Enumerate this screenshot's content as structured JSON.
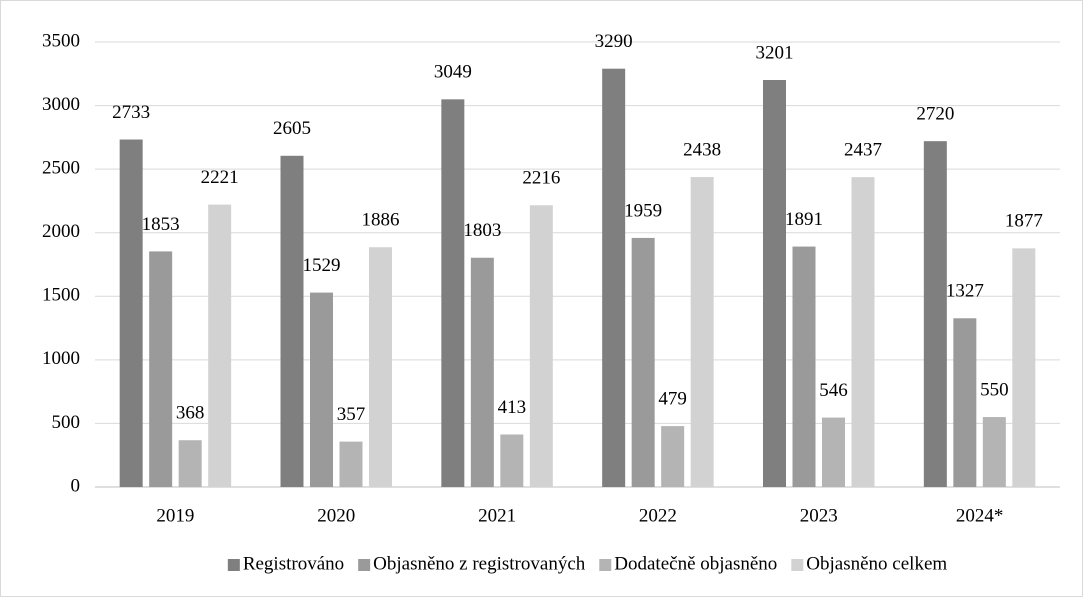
{
  "chart_data": {
    "type": "bar",
    "categories": [
      "2019",
      "2020",
      "2021",
      "2022",
      "2023",
      "2024*"
    ],
    "series": [
      {
        "name": "Registrováno",
        "color": "#7f7f7f",
        "values": [
          2733,
          2605,
          3049,
          3290,
          3201,
          2720
        ]
      },
      {
        "name": "Objasněno z registrovaných",
        "color": "#9a9a9a",
        "values": [
          1853,
          1529,
          1803,
          1959,
          1891,
          1327
        ]
      },
      {
        "name": "Dodatečně objasněno",
        "color": "#b4b4b4",
        "values": [
          368,
          357,
          413,
          479,
          546,
          550
        ]
      },
      {
        "name": "Objasněno celkem",
        "color": "#d2d2d2",
        "values": [
          2221,
          1886,
          2216,
          2438,
          2437,
          1877
        ]
      }
    ],
    "ylim": [
      0,
      3500
    ],
    "yticks": [
      0,
      500,
      1000,
      1500,
      2000,
      2500,
      3000,
      3500
    ],
    "grid": true,
    "legend": "bottom"
  }
}
